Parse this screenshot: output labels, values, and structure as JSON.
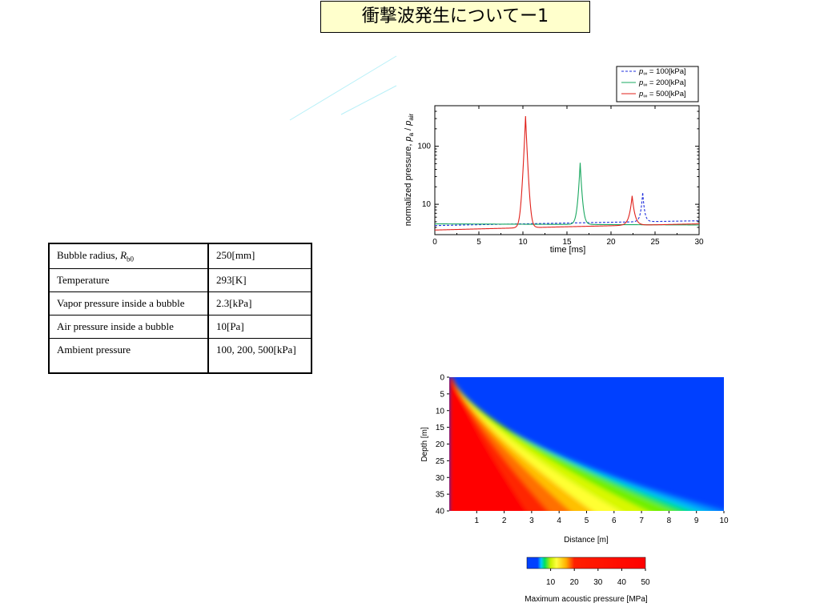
{
  "slide": {
    "title": "衝撃波発生についてー1"
  },
  "params_table": {
    "rows": [
      {
        "label": "Bubble radius, ",
        "label_sym": "R",
        "label_sub": "b0",
        "value": "250[mm]"
      },
      {
        "label": "Temperature",
        "value": "293[K]"
      },
      {
        "label": "Vapor pressure inside a bubble",
        "value": "2.3[kPa]"
      },
      {
        "label": "Air pressure inside a bubble",
        "value": "10[Pa]"
      },
      {
        "label": "Ambient pressure",
        "value": "100, 200, 500[kPa]"
      }
    ]
  },
  "chart_data": [
    {
      "type": "line",
      "xlabel": "time [ms]",
      "ylabel": "normalized pressure,  p_a / p_air",
      "ylabel_parts": {
        "prefix": "normalized pressure,  ",
        "p1": "p",
        "sub1": "a",
        "slash": " / ",
        "p2": "p",
        "sub2": "air"
      },
      "xlim": [
        0,
        30
      ],
      "ylim": [
        3,
        500
      ],
      "yscale": "log",
      "x_ticks": [
        0,
        5,
        10,
        15,
        20,
        25,
        30
      ],
      "y_ticks": [
        10,
        100
      ],
      "legend_position": "top-right",
      "series": [
        {
          "name": "p∞ = 100[kPa]",
          "legend_sym": "p",
          "legend_sub": "∞",
          "legend_val": " = 100[kPa]",
          "color": "#1f2fdc",
          "dash": "3,2",
          "baseline": [
            4.3,
            5.2
          ],
          "peak_x": 23.6,
          "peak_y": 16,
          "width": 0.25
        },
        {
          "name": "p∞ = 200[kPa]",
          "legend_sym": "p",
          "legend_sub": "∞",
          "legend_val": " = 200[kPa]",
          "color": "#1aa860",
          "dash": "",
          "baseline": [
            4.6,
            4.4
          ],
          "peak_x": 16.5,
          "peak_y": 52,
          "width": 0.22
        },
        {
          "name": "p∞ = 500[kPa]",
          "legend_sym": "p",
          "legend_sub": "∞",
          "legend_val": " = 500[kPa]",
          "color": "#e0201a",
          "dash": "",
          "baseline": [
            3.6,
            4.6
          ],
          "peak_x": 10.3,
          "peak_y": 330,
          "width": 0.18,
          "peak2_x": 22.4,
          "peak2_y": 14
        }
      ]
    },
    {
      "type": "heatmap",
      "xlabel": "Distance [m]",
      "ylabel": "Depth [m]",
      "xlim": [
        0,
        10
      ],
      "ylim": [
        0,
        40
      ],
      "x_ticks": [
        1,
        2,
        3,
        4,
        5,
        6,
        7,
        8,
        9,
        10
      ],
      "y_ticks": [
        0,
        5,
        10,
        15,
        20,
        25,
        30,
        35,
        40
      ],
      "colorbar": {
        "label": "Maximum acoustic pressure [MPa]",
        "ticks": [
          10,
          20,
          30,
          40,
          50
        ],
        "range": [
          0,
          50
        ]
      },
      "colors": {
        "low": "#0040ff",
        "high": "#ff0000"
      }
    }
  ]
}
